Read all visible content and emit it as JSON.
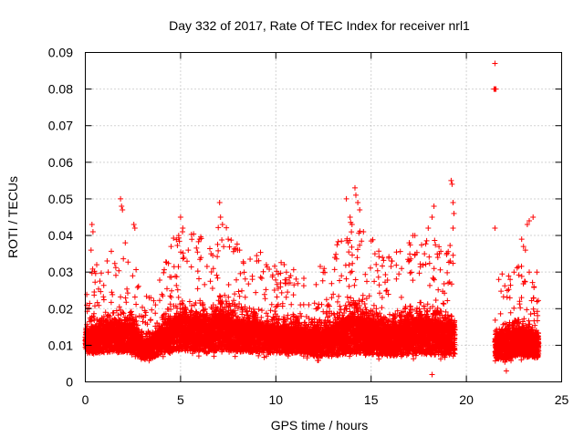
{
  "chart_data": {
    "type": "scatter",
    "title": "Day 332 of 2017, Rate Of TEC Index for receiver nrl1",
    "xlabel": "GPS time / hours",
    "ylabel": "ROTI / TECUs",
    "xlim": [
      0,
      25
    ],
    "ylim": [
      0,
      0.09
    ],
    "x_ticks": [
      "0",
      "5",
      "10",
      "15",
      "20",
      "25"
    ],
    "y_ticks": [
      "0",
      "0.01",
      "0.02",
      "0.03",
      "0.04",
      "0.05",
      "0.06",
      "0.07",
      "0.08",
      "0.09"
    ],
    "grid": true,
    "marker": "+",
    "marker_color": "#ff0000",
    "series": [
      {
        "envelope": [
          [
            0.0,
            0.006,
            0.018
          ],
          [
            0.5,
            0.006,
            0.02
          ],
          [
            1.0,
            0.006,
            0.021
          ],
          [
            1.5,
            0.006,
            0.022
          ],
          [
            2.0,
            0.006,
            0.021
          ],
          [
            2.5,
            0.006,
            0.022
          ],
          [
            3.0,
            0.005,
            0.015
          ],
          [
            3.5,
            0.005,
            0.015
          ],
          [
            4.0,
            0.006,
            0.02
          ],
          [
            4.5,
            0.006,
            0.023
          ],
          [
            5.0,
            0.006,
            0.025
          ],
          [
            5.5,
            0.006,
            0.025
          ],
          [
            6.0,
            0.006,
            0.024
          ],
          [
            6.5,
            0.006,
            0.022
          ],
          [
            7.0,
            0.006,
            0.026
          ],
          [
            7.5,
            0.006,
            0.025
          ],
          [
            8.0,
            0.006,
            0.023
          ],
          [
            8.5,
            0.006,
            0.022
          ],
          [
            9.0,
            0.006,
            0.022
          ],
          [
            9.5,
            0.006,
            0.021
          ],
          [
            10.0,
            0.006,
            0.02
          ],
          [
            10.5,
            0.006,
            0.02
          ],
          [
            11.0,
            0.006,
            0.02
          ],
          [
            11.5,
            0.006,
            0.019
          ],
          [
            12.0,
            0.005,
            0.019
          ],
          [
            12.5,
            0.005,
            0.02
          ],
          [
            13.0,
            0.005,
            0.021
          ],
          [
            13.5,
            0.005,
            0.024
          ],
          [
            14.0,
            0.005,
            0.026
          ],
          [
            14.5,
            0.005,
            0.025
          ],
          [
            15.0,
            0.005,
            0.023
          ],
          [
            15.5,
            0.005,
            0.022
          ],
          [
            16.0,
            0.005,
            0.021
          ],
          [
            16.5,
            0.005,
            0.022
          ],
          [
            17.0,
            0.005,
            0.023
          ],
          [
            17.5,
            0.005,
            0.025
          ],
          [
            18.0,
            0.005,
            0.024
          ],
          [
            18.5,
            0.005,
            0.023
          ],
          [
            19.0,
            0.005,
            0.022
          ],
          [
            19.4,
            0.005,
            0.022
          ],
          [
            21.5,
            0.005,
            0.016
          ],
          [
            22.0,
            0.004,
            0.018
          ],
          [
            22.5,
            0.005,
            0.019
          ],
          [
            23.0,
            0.005,
            0.019
          ],
          [
            23.5,
            0.005,
            0.018
          ],
          [
            23.8,
            0.005,
            0.017
          ]
        ],
        "outliers": [
          [
            0.35,
            0.043
          ],
          [
            0.4,
            0.041
          ],
          [
            0.3,
            0.036
          ],
          [
            1.85,
            0.05
          ],
          [
            1.9,
            0.048
          ],
          [
            1.95,
            0.047
          ],
          [
            2.55,
            0.043
          ],
          [
            2.6,
            0.042
          ],
          [
            2.1,
            0.038
          ],
          [
            1.2,
            0.03
          ],
          [
            4.5,
            0.037
          ],
          [
            4.9,
            0.04
          ],
          [
            5.0,
            0.045
          ],
          [
            5.1,
            0.041
          ],
          [
            6.0,
            0.039
          ],
          [
            5.4,
            0.036
          ],
          [
            6.6,
            0.035
          ],
          [
            7.05,
            0.049
          ],
          [
            7.1,
            0.045
          ],
          [
            7.2,
            0.043
          ],
          [
            7.5,
            0.039
          ],
          [
            8.1,
            0.036
          ],
          [
            9.0,
            0.033
          ],
          [
            9.5,
            0.032
          ],
          [
            13.1,
            0.034
          ],
          [
            13.7,
            0.05
          ],
          [
            13.9,
            0.045
          ],
          [
            14.0,
            0.043
          ],
          [
            14.15,
            0.053
          ],
          [
            14.2,
            0.051
          ],
          [
            14.3,
            0.049
          ],
          [
            14.4,
            0.047
          ],
          [
            13.8,
            0.038
          ],
          [
            14.6,
            0.041
          ],
          [
            15.2,
            0.035
          ],
          [
            15.6,
            0.034
          ],
          [
            16.1,
            0.033
          ],
          [
            17.0,
            0.038
          ],
          [
            17.2,
            0.04
          ],
          [
            17.3,
            0.04
          ],
          [
            18.0,
            0.042
          ],
          [
            18.2,
            0.045
          ],
          [
            18.3,
            0.048
          ],
          [
            19.2,
            0.055
          ],
          [
            19.25,
            0.054
          ],
          [
            19.3,
            0.049
          ],
          [
            19.35,
            0.046
          ],
          [
            19.3,
            0.042
          ],
          [
            17.8,
            0.035
          ],
          [
            18.5,
            0.034
          ],
          [
            16.6,
            0.031
          ],
          [
            18.2,
            0.002
          ],
          [
            21.5,
            0.087
          ],
          [
            21.45,
            0.08
          ],
          [
            21.5,
            0.08
          ],
          [
            21.55,
            0.08
          ],
          [
            21.5,
            0.042
          ],
          [
            21.7,
            0.028
          ],
          [
            22.5,
            0.03
          ],
          [
            22.9,
            0.039
          ],
          [
            23.0,
            0.037
          ],
          [
            23.1,
            0.036
          ],
          [
            23.2,
            0.043
          ],
          [
            23.3,
            0.044
          ],
          [
            23.5,
            0.045
          ],
          [
            23.3,
            0.03
          ],
          [
            22.3,
            0.028
          ],
          [
            23.7,
            0.03
          ],
          [
            22.1,
            0.003
          ]
        ]
      }
    ]
  }
}
